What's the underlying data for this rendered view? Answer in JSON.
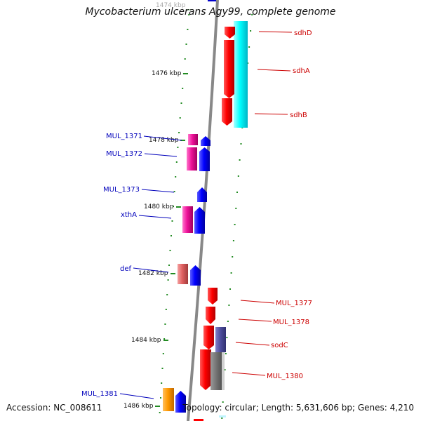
{
  "title": "Mycobacterium ulcerans Agy99, complete genome",
  "accession": "Accession: NC_008611",
  "topology": "Topology: circular; Length: 5,631,606 bp; Genes: 4,210",
  "colors": {
    "backbone": "#8c8c8c",
    "tick": "#228b22",
    "forward_label": "#0000bb",
    "reverse_label": "#cc0000"
  },
  "ticks": [
    {
      "label": "1474 kbp",
      "faded": true
    },
    {
      "label": "1476 kbp"
    },
    {
      "label": "1478 kbp"
    },
    {
      "label": "1480 kbp"
    },
    {
      "label": "1482 kbp"
    },
    {
      "label": "1484 kbp"
    },
    {
      "label": "1486 kbp"
    }
  ],
  "genes": [
    {
      "label": "sdhD",
      "strand": "reverse"
    },
    {
      "label": "sdhA",
      "strand": "reverse"
    },
    {
      "label": "sdhB",
      "strand": "reverse"
    },
    {
      "label": "MUL_1371",
      "strand": "forward"
    },
    {
      "label": "MUL_1372",
      "strand": "forward"
    },
    {
      "label": "MUL_1373",
      "strand": "forward"
    },
    {
      "label": "xthA",
      "strand": "forward"
    },
    {
      "label": "def",
      "strand": "forward"
    },
    {
      "label": "MUL_1377",
      "strand": "reverse"
    },
    {
      "label": "MUL_1378",
      "strand": "reverse"
    },
    {
      "label": "sodC",
      "strand": "reverse"
    },
    {
      "label": "MUL_1380",
      "strand": "reverse"
    },
    {
      "label": "MUL_1381",
      "strand": "forward"
    }
  ]
}
